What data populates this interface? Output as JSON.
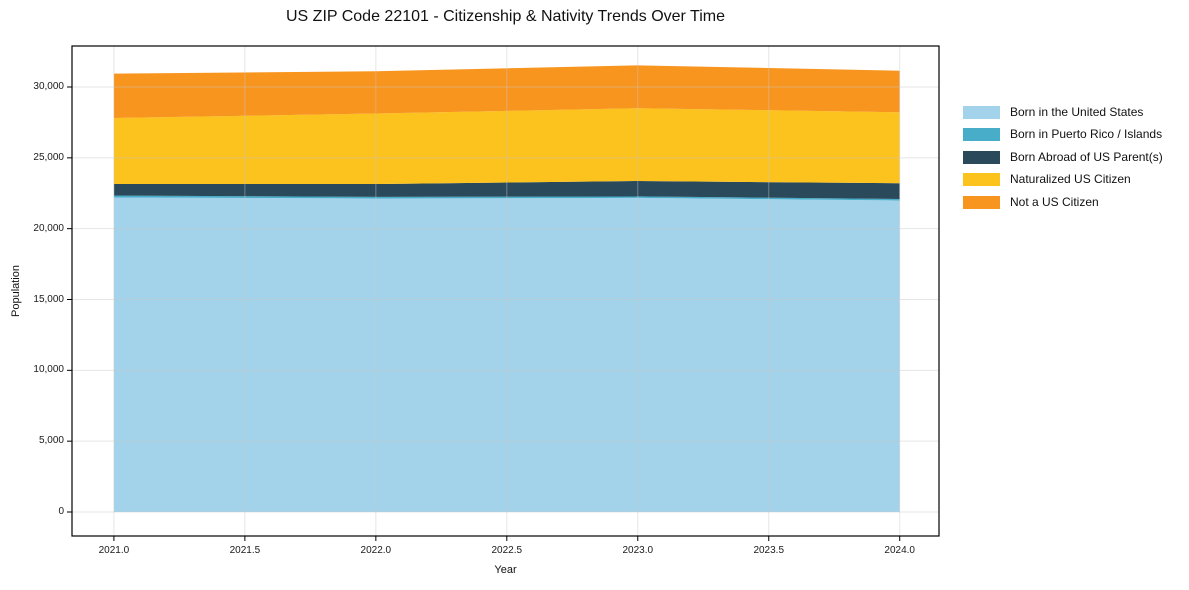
{
  "chart_data": {
    "type": "area",
    "stacked": true,
    "title": "US ZIP Code 22101 - Citizenship & Nativity Trends Over Time",
    "xlabel": "Year",
    "ylabel": "Population",
    "x": [
      2021,
      2022,
      2023,
      2024
    ],
    "series": [
      {
        "name": "Born in the United States",
        "color": "#A3D3EA",
        "values": [
          22200,
          22130,
          22170,
          21990
        ]
      },
      {
        "name": "Born in Puerto Rico / Islands",
        "color": "#47ADC9",
        "values": [
          140,
          110,
          105,
          105
        ]
      },
      {
        "name": "Born Abroad of US Parent(s)",
        "color": "#2A4A5C",
        "values": [
          815,
          910,
          1090,
          1110
        ]
      },
      {
        "name": "Naturalized US Citizen",
        "color": "#FCC21E",
        "values": [
          4655,
          4980,
          5135,
          5010
        ]
      },
      {
        "name": "Not a US Citizen",
        "color": "#F8951E",
        "values": [
          3130,
          2980,
          3030,
          2935
        ]
      }
    ],
    "totals": [
      30940,
      31110,
      31530,
      31150
    ],
    "xlim": [
      2020.84,
      2024.15
    ],
    "ylim": [
      -1694,
      32894
    ],
    "x_ticks": [
      {
        "value": 2021.0,
        "label": "2021.0"
      },
      {
        "value": 2021.5,
        "label": "2021.5"
      },
      {
        "value": 2022.0,
        "label": "2022.0"
      },
      {
        "value": 2022.5,
        "label": "2022.5"
      },
      {
        "value": 2023.0,
        "label": "2023.0"
      },
      {
        "value": 2023.5,
        "label": "2023.5"
      },
      {
        "value": 2024.0,
        "label": "2024.0"
      }
    ],
    "y_ticks": [
      {
        "value": 0,
        "label": "0"
      },
      {
        "value": 5000,
        "label": "5,000"
      },
      {
        "value": 10000,
        "label": "10,000"
      },
      {
        "value": 15000,
        "label": "15,000"
      },
      {
        "value": 20000,
        "label": "20,000"
      },
      {
        "value": 25000,
        "label": "25,000"
      },
      {
        "value": 30000,
        "label": "30,000"
      }
    ],
    "grid": true,
    "legend_position": "right",
    "colors": {
      "background": "#ffffff",
      "spine": "#000000",
      "gridline": "#c8c8c8"
    }
  }
}
